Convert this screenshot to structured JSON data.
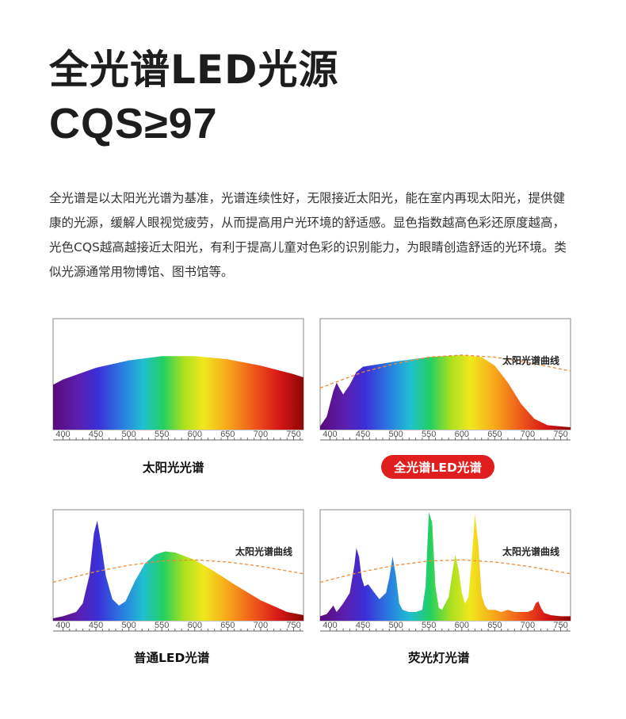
{
  "header": {
    "title_line1": "全光谱LED光源",
    "title_line2": "CQS≥97"
  },
  "description": "全光谱是以太阳光光谱为基准，光谱连续性好，无限接近太阳光，能在室内再现太阳光，提供健康的光源，缓解人眼视觉疲劳，从而提高用户光环境的舒适感。显色指数越高色彩还原度越高，光色CQS越高越接近太阳光，有利于提高儿童对色彩的识别能力，为眼睛创造舒适的光环境。类似光源通常用物博馆、图书馆等。",
  "colors": {
    "highlight": "#e01e1e",
    "reference_curve": "#f08a33",
    "frame": "#888888"
  },
  "chart_data": [
    {
      "type": "area",
      "caption": "太阳光光谱",
      "caption_highlight": false,
      "reference_label": "",
      "xlim": [
        385,
        765
      ],
      "xticks": [
        400,
        450,
        500,
        550,
        600,
        650,
        700,
        750
      ],
      "x": [
        380,
        400,
        450,
        500,
        550,
        600,
        650,
        700,
        750,
        765
      ],
      "y": [
        0.4,
        0.45,
        0.56,
        0.63,
        0.67,
        0.67,
        0.64,
        0.58,
        0.5,
        0.47
      ]
    },
    {
      "type": "area",
      "caption": "全光谱LED光谱",
      "caption_highlight": true,
      "reference_label": "太阳光谱曲线",
      "xlim": [
        385,
        765
      ],
      "xticks": [
        400,
        450,
        500,
        550,
        600,
        650,
        700,
        750
      ],
      "x": [
        380,
        395,
        405,
        410,
        415,
        420,
        430,
        440,
        450,
        460,
        480,
        500,
        550,
        600,
        630,
        650,
        670,
        690,
        710,
        730,
        765
      ],
      "y": [
        0.01,
        0.1,
        0.34,
        0.42,
        0.36,
        0.31,
        0.4,
        0.52,
        0.57,
        0.58,
        0.6,
        0.62,
        0.66,
        0.68,
        0.66,
        0.58,
        0.42,
        0.22,
        0.08,
        0.02,
        0.0
      ],
      "reference_x": [
        385,
        450,
        500,
        550,
        600,
        650,
        700,
        765
      ],
      "reference_y": [
        0.37,
        0.52,
        0.6,
        0.66,
        0.68,
        0.66,
        0.61,
        0.53
      ]
    },
    {
      "type": "area",
      "caption": "普通LED光谱",
      "caption_highlight": false,
      "reference_label": "太阳光谱曲线",
      "xlim": [
        385,
        765
      ],
      "xticks": [
        400,
        450,
        500,
        550,
        600,
        650,
        700,
        750
      ],
      "x": [
        380,
        400,
        420,
        430,
        440,
        447,
        452,
        458,
        465,
        475,
        485,
        495,
        510,
        525,
        540,
        555,
        570,
        600,
        630,
        660,
        700,
        740,
        765
      ],
      "y": [
        0.0,
        0.02,
        0.06,
        0.14,
        0.4,
        0.8,
        0.92,
        0.7,
        0.4,
        0.18,
        0.12,
        0.16,
        0.36,
        0.52,
        0.6,
        0.63,
        0.62,
        0.55,
        0.44,
        0.32,
        0.17,
        0.06,
        0.03
      ],
      "reference_x": [
        385,
        450,
        500,
        550,
        600,
        650,
        700,
        765
      ],
      "reference_y": [
        0.34,
        0.44,
        0.5,
        0.54,
        0.55,
        0.53,
        0.49,
        0.42
      ]
    },
    {
      "type": "area",
      "caption": "荧光灯光谱",
      "caption_highlight": false,
      "reference_label": "太阳光谱曲线",
      "xlim": [
        385,
        765
      ],
      "xticks": [
        400,
        450,
        500,
        550,
        600,
        650,
        700,
        750
      ],
      "x": [
        380,
        395,
        405,
        410,
        420,
        430,
        437,
        440,
        444,
        448,
        452,
        458,
        465,
        475,
        485,
        490,
        495,
        500,
        505,
        510,
        520,
        530,
        540,
        545,
        550,
        555,
        560,
        565,
        570,
        580,
        585,
        590,
        595,
        600,
        605,
        610,
        615,
        620,
        625,
        630,
        635,
        640,
        650,
        660,
        670,
        680,
        690,
        700,
        708,
        712,
        716,
        720,
        725,
        735,
        750,
        765
      ],
      "y": [
        0.02,
        0.04,
        0.12,
        0.06,
        0.14,
        0.24,
        0.5,
        0.66,
        0.58,
        0.38,
        0.3,
        0.32,
        0.26,
        0.18,
        0.24,
        0.38,
        0.58,
        0.4,
        0.14,
        0.08,
        0.06,
        0.06,
        0.08,
        0.3,
        1.0,
        0.9,
        0.3,
        0.1,
        0.08,
        0.2,
        0.4,
        0.6,
        0.46,
        0.24,
        0.14,
        0.2,
        0.55,
        0.98,
        0.7,
        0.22,
        0.12,
        0.08,
        0.08,
        0.06,
        0.08,
        0.06,
        0.06,
        0.06,
        0.08,
        0.14,
        0.16,
        0.1,
        0.05,
        0.03,
        0.02,
        0.02
      ],
      "reference_x": [
        385,
        450,
        500,
        550,
        600,
        650,
        700,
        765
      ],
      "reference_y": [
        0.34,
        0.44,
        0.5,
        0.54,
        0.55,
        0.53,
        0.49,
        0.42
      ]
    }
  ]
}
